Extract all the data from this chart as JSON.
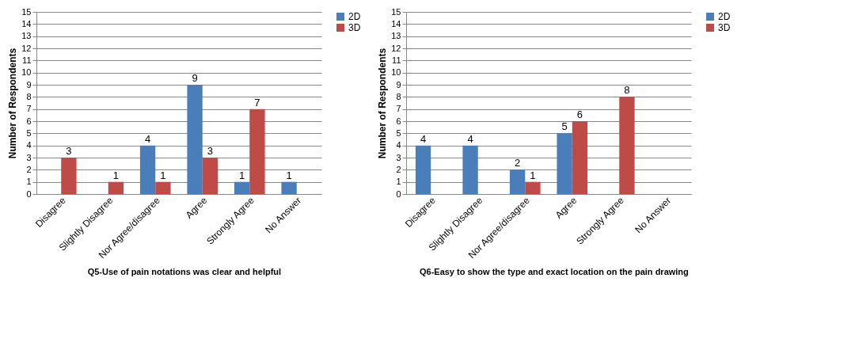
{
  "chart_data": [
    {
      "type": "bar",
      "title": "Q5-Use of pain notations was clear and helpful",
      "ylabel": "Number of Respondents",
      "categories": [
        "Disagree",
        "Slightly Disagree",
        "Nor Agree/disagree",
        "Agree",
        "Strongly Agree",
        "No Answer"
      ],
      "series": [
        {
          "name": "2D",
          "color": "#4a7ebb",
          "values": [
            0,
            0,
            4,
            9,
            1,
            1
          ],
          "value_labels": [
            null,
            null,
            "4",
            "9",
            "1",
            "1"
          ]
        },
        {
          "name": "3D",
          "color": "#be4b48",
          "values": [
            3,
            1,
            1,
            3,
            7,
            0
          ],
          "value_labels": [
            "3",
            "1",
            "1",
            "3",
            "7",
            null
          ]
        }
      ],
      "ylim": [
        0,
        15
      ],
      "yticks": [
        0,
        1,
        2,
        3,
        4,
        5,
        6,
        7,
        8,
        9,
        10,
        11,
        12,
        13,
        14,
        15
      ],
      "grid": "y",
      "legend": "right"
    },
    {
      "type": "bar",
      "title": "Q6-Easy  to show the type and exact location on the pain drawing",
      "ylabel": "Number of Respondents",
      "categories": [
        "Disagree",
        "Slightly Disagree",
        "Nor Agree/disagree",
        "Agree",
        "Strongly Agree",
        "No Answer"
      ],
      "series": [
        {
          "name": "2D",
          "color": "#4a7ebb",
          "values": [
            4,
            4,
            2,
            5,
            0,
            0
          ],
          "value_labels": [
            "4",
            "4",
            "2",
            "5",
            null,
            null
          ]
        },
        {
          "name": "3D",
          "color": "#be4b48",
          "values": [
            0,
            0,
            1,
            6,
            8,
            0
          ],
          "value_labels": [
            null,
            null,
            "1",
            "6",
            "8",
            null
          ]
        }
      ],
      "ylim": [
        0,
        15
      ],
      "yticks": [
        0,
        1,
        2,
        3,
        4,
        5,
        6,
        7,
        8,
        9,
        10,
        11,
        12,
        13,
        14,
        15
      ],
      "grid": "y",
      "legend": "right"
    }
  ]
}
